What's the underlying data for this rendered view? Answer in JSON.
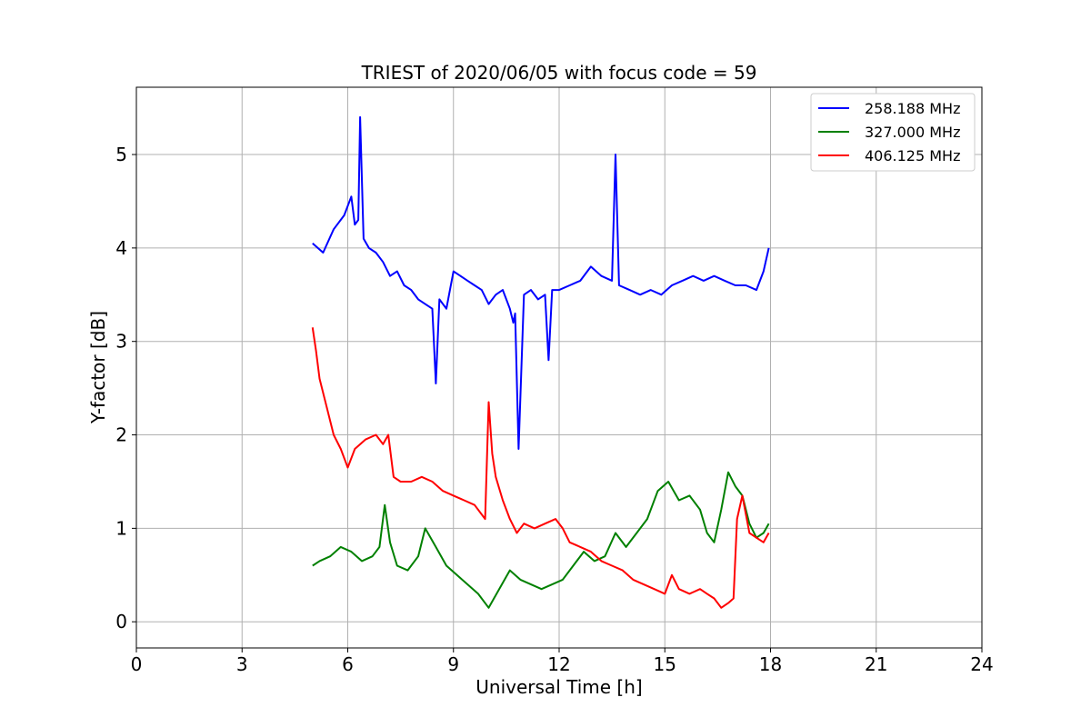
{
  "chart_data": {
    "type": "line",
    "title": "TRIEST of 2020/06/05 with focus code = 59",
    "xlabel": "Universal Time [h]",
    "ylabel": "Y-factor [dB]",
    "xlim": [
      0,
      24
    ],
    "ylim": [
      -0.28,
      5.72
    ],
    "xticks": [
      0,
      3,
      6,
      9,
      12,
      15,
      18,
      21,
      24
    ],
    "xtick_labels": [
      "0",
      "3",
      "6",
      "9",
      "12",
      "15",
      "18",
      "21",
      "24"
    ],
    "yticks": [
      0,
      1,
      2,
      3,
      4,
      5
    ],
    "ytick_labels": [
      "0",
      "1",
      "2",
      "3",
      "4",
      "5"
    ],
    "grid": true,
    "legend_position": "top-right",
    "series": [
      {
        "name": "258.188 MHz",
        "color": "#0000ff",
        "x": [
          5.0,
          5.3,
          5.6,
          5.9,
          6.1,
          6.2,
          6.3,
          6.35,
          6.45,
          6.6,
          6.8,
          7.0,
          7.2,
          7.4,
          7.6,
          7.8,
          8.0,
          8.2,
          8.4,
          8.5,
          8.6,
          8.8,
          8.9,
          9.0,
          9.2,
          9.4,
          9.6,
          9.8,
          10.0,
          10.2,
          10.4,
          10.6,
          10.7,
          10.75,
          10.85,
          11.0,
          11.2,
          11.4,
          11.6,
          11.7,
          11.8,
          12.0,
          12.3,
          12.6,
          12.9,
          13.2,
          13.5,
          13.6,
          13.7,
          14.0,
          14.3,
          14.6,
          14.9,
          15.2,
          15.5,
          15.8,
          16.1,
          16.4,
          16.7,
          17.0,
          17.3,
          17.6,
          17.8,
          17.95
        ],
        "y": [
          4.05,
          3.95,
          4.2,
          4.35,
          4.55,
          4.25,
          4.3,
          5.4,
          4.1,
          4.0,
          3.95,
          3.85,
          3.7,
          3.75,
          3.6,
          3.55,
          3.45,
          3.4,
          3.35,
          2.55,
          3.45,
          3.35,
          3.55,
          3.75,
          3.7,
          3.65,
          3.6,
          3.55,
          3.4,
          3.5,
          3.55,
          3.35,
          3.2,
          3.3,
          1.85,
          3.5,
          3.55,
          3.45,
          3.5,
          2.8,
          3.55,
          3.55,
          3.6,
          3.65,
          3.8,
          3.7,
          3.65,
          5.0,
          3.6,
          3.55,
          3.5,
          3.55,
          3.5,
          3.6,
          3.65,
          3.7,
          3.65,
          3.7,
          3.65,
          3.6,
          3.6,
          3.55,
          3.75,
          4.0
        ]
      },
      {
        "name": "327.000 MHz",
        "color": "#008000",
        "x": [
          5.0,
          5.2,
          5.5,
          5.8,
          6.1,
          6.4,
          6.7,
          6.9,
          7.05,
          7.2,
          7.4,
          7.7,
          8.0,
          8.2,
          8.5,
          8.8,
          9.1,
          9.4,
          9.7,
          10.0,
          10.3,
          10.6,
          10.9,
          11.2,
          11.5,
          11.8,
          12.1,
          12.4,
          12.7,
          13.0,
          13.3,
          13.6,
          13.9,
          14.2,
          14.5,
          14.8,
          15.1,
          15.4,
          15.7,
          16.0,
          16.2,
          16.4,
          16.6,
          16.8,
          17.0,
          17.2,
          17.4,
          17.6,
          17.8,
          17.95
        ],
        "y": [
          0.6,
          0.65,
          0.7,
          0.8,
          0.75,
          0.65,
          0.7,
          0.8,
          1.25,
          0.85,
          0.6,
          0.55,
          0.7,
          1.0,
          0.8,
          0.6,
          0.5,
          0.4,
          0.3,
          0.15,
          0.35,
          0.55,
          0.45,
          0.4,
          0.35,
          0.4,
          0.45,
          0.6,
          0.75,
          0.65,
          0.7,
          0.95,
          0.8,
          0.95,
          1.1,
          1.4,
          1.5,
          1.3,
          1.35,
          1.2,
          0.95,
          0.85,
          1.2,
          1.6,
          1.45,
          1.35,
          1.05,
          0.9,
          0.95,
          1.05
        ]
      },
      {
        "name": "406.125 MHz",
        "color": "#ff0000",
        "x": [
          5.0,
          5.1,
          5.2,
          5.4,
          5.6,
          5.8,
          6.0,
          6.2,
          6.5,
          6.8,
          7.0,
          7.15,
          7.3,
          7.5,
          7.8,
          8.1,
          8.4,
          8.7,
          9.0,
          9.3,
          9.6,
          9.9,
          10.0,
          10.1,
          10.2,
          10.4,
          10.6,
          10.8,
          11.0,
          11.3,
          11.6,
          11.9,
          12.1,
          12.3,
          12.6,
          12.9,
          13.2,
          13.5,
          13.8,
          14.1,
          14.4,
          14.7,
          15.0,
          15.2,
          15.4,
          15.7,
          16.0,
          16.2,
          16.4,
          16.6,
          16.8,
          16.95,
          17.05,
          17.2,
          17.4,
          17.6,
          17.8,
          17.95
        ],
        "y": [
          3.15,
          2.9,
          2.6,
          2.3,
          2.0,
          1.85,
          1.65,
          1.85,
          1.95,
          2.0,
          1.9,
          2.0,
          1.55,
          1.5,
          1.5,
          1.55,
          1.5,
          1.4,
          1.35,
          1.3,
          1.25,
          1.1,
          2.35,
          1.8,
          1.55,
          1.3,
          1.1,
          0.95,
          1.05,
          1.0,
          1.05,
          1.1,
          1.0,
          0.85,
          0.8,
          0.75,
          0.65,
          0.6,
          0.55,
          0.45,
          0.4,
          0.35,
          0.3,
          0.5,
          0.35,
          0.3,
          0.35,
          0.3,
          0.25,
          0.15,
          0.2,
          0.25,
          1.1,
          1.35,
          0.95,
          0.9,
          0.85,
          0.95
        ]
      }
    ]
  }
}
